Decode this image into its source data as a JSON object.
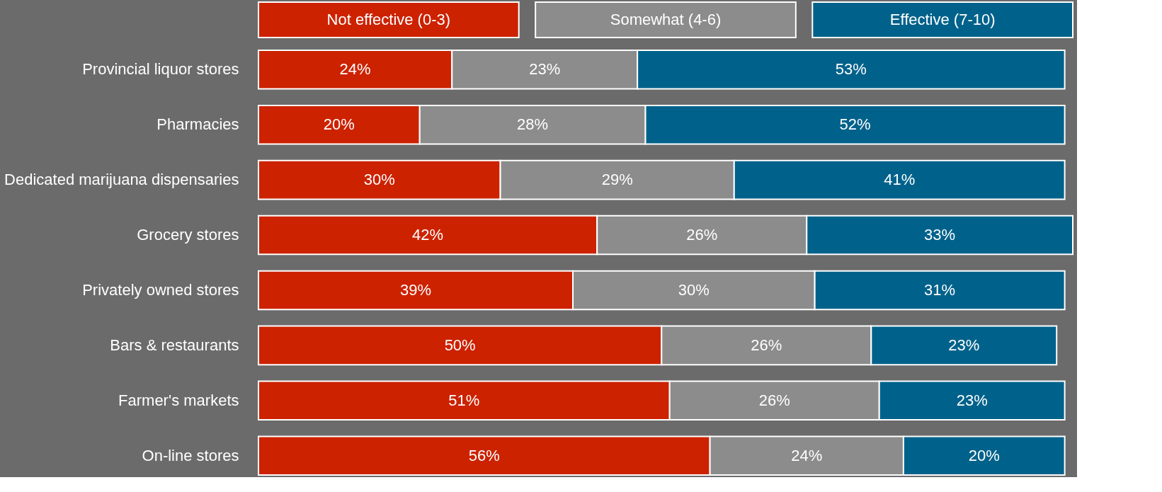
{
  "chart_data": {
    "type": "bar",
    "orientation": "horizontal",
    "stacked": true,
    "legend": "top",
    "grid": false,
    "categories": [
      "Provincial liquor stores",
      "Pharmacies",
      "Dedicated marijuana dispensaries",
      "Grocery stores",
      "Privately owned  stores",
      "Bars & restaurants",
      "Farmer's markets",
      "On-line stores"
    ],
    "series": [
      {
        "name": "Not effective (0-3)",
        "color": "#cc2200",
        "values": [
          24,
          20,
          30,
          42,
          39,
          50,
          51,
          56
        ],
        "value_labels": [
          "24%",
          "20%",
          "30%",
          "42%",
          "39%",
          "50%",
          "51%",
          "56%"
        ]
      },
      {
        "name": "Somewhat (4-6)",
        "color": "#8c8c8c",
        "values": [
          23,
          28,
          29,
          26,
          30,
          26,
          26,
          24
        ],
        "value_labels": [
          "23%",
          "28%",
          "29%",
          "26%",
          "30%",
          "26%",
          "26%",
          "24%"
        ]
      },
      {
        "name": "Effective (7-10)",
        "color": "#00628b",
        "values": [
          53,
          52,
          41,
          33,
          31,
          23,
          23,
          20
        ],
        "value_labels": [
          "53%",
          "52%",
          "41%",
          "33%",
          "31%",
          "23%",
          "23%",
          "20%"
        ]
      }
    ]
  }
}
